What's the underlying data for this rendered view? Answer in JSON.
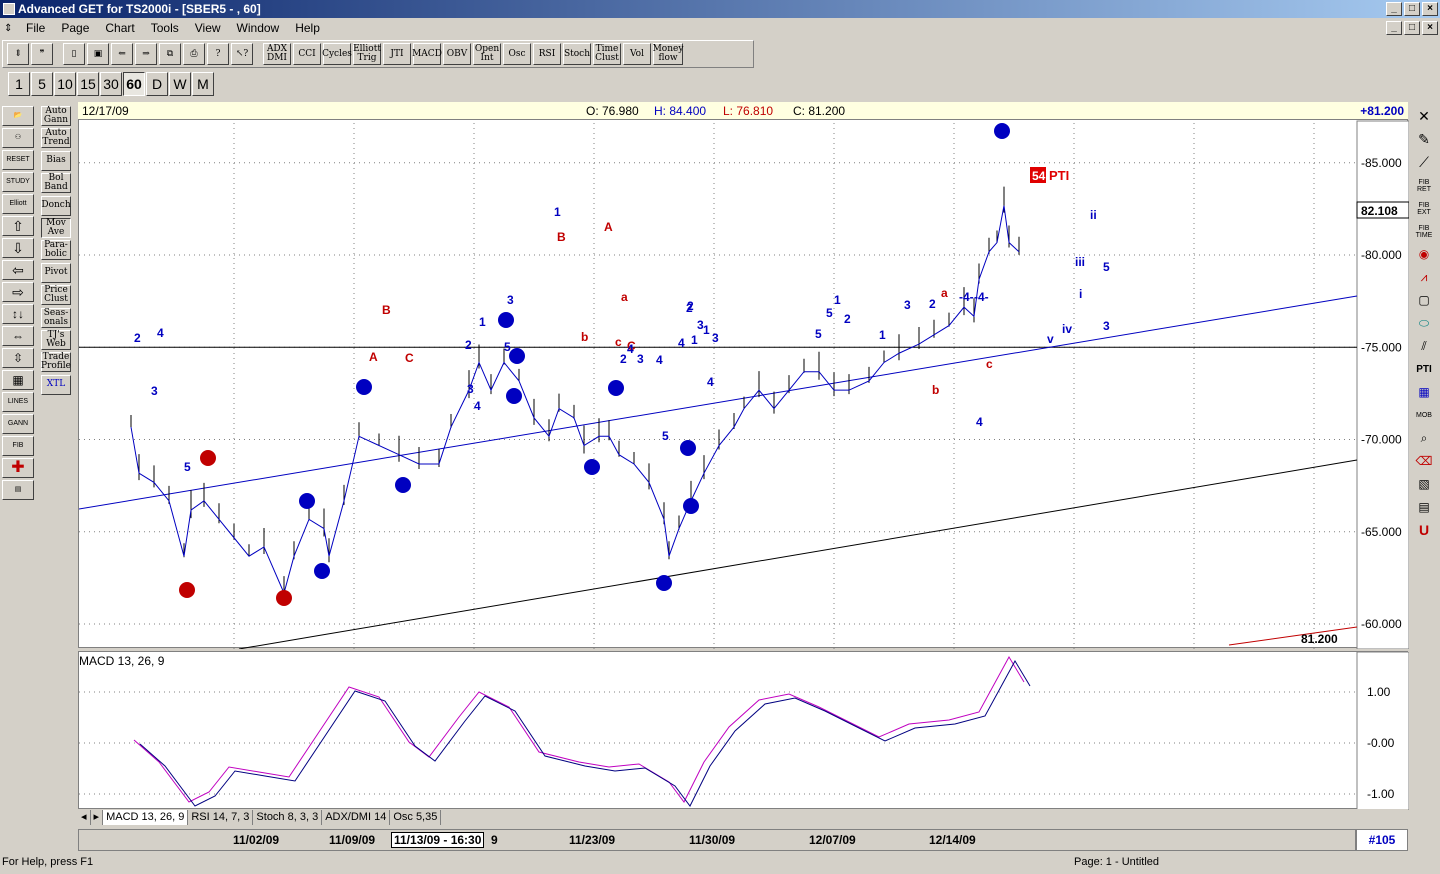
{
  "window": {
    "title": "Advanced GET for TS2000i - [SBER5 - , 60]"
  },
  "menu": [
    "File",
    "Page",
    "Chart",
    "Tools",
    "View",
    "Window",
    "Help"
  ],
  "toolbar": [
    "ADX DMI",
    "CCI",
    "Cycles",
    "Elliott Trig",
    "JTI",
    "MACD",
    "OBV",
    "Open Int",
    "Osc",
    "RSI",
    "Stoch",
    "Time Clust",
    "Vol",
    "Money flow"
  ],
  "timeframes": [
    "1",
    "5",
    "10",
    "15",
    "30",
    "60",
    "D",
    "W",
    "M"
  ],
  "selected_timeframe": "60",
  "left_tools": [
    "Auto Gann",
    "Auto Trend",
    "Bias",
    "Bol Band",
    "Donch",
    "Mov Ave",
    "Para-bolic",
    "Pivot",
    "Price Clust",
    "Seas-onals",
    "TJ's Web",
    "Trade Profile",
    "XTL"
  ],
  "left_icons": [
    "RESET",
    "STUDY",
    "Elliott",
    "LINES",
    "GANN",
    "FIB"
  ],
  "right_icons": [
    "FIB RET",
    "FIB EXT",
    "FIB TIME",
    "PTI",
    "MOB"
  ],
  "info": {
    "date": "12/17/09",
    "open": "O: 76.980",
    "high": "H: 84.400",
    "low": "L: 76.810",
    "close": "C: 81.200",
    "change": "+81.200"
  },
  "price_axis": {
    "labels": [
      "-85.000",
      "-80.000",
      "-75.000",
      "-70.000",
      "-65.000",
      "-60.000"
    ],
    "current": "82.108",
    "last": "81.200"
  },
  "pti": {
    "value": "54",
    "label": "PTI"
  },
  "macd": {
    "title": "MACD 13, 26, 9",
    "labels": [
      "1.00",
      "-0.00",
      "-1.00"
    ]
  },
  "tabs": [
    "MACD 13, 26, 9",
    "RSI 14, 7, 3",
    "Stoch 8, 3, 3",
    "ADX/DMI 14",
    "Osc 5,35"
  ],
  "dates": [
    "11/02/09",
    "11/09/09",
    "11/13/09 - 16:30",
    "9",
    "11/23/09",
    "11/30/09",
    "12/07/09",
    "12/14/09"
  ],
  "bar_count": "#105",
  "status": {
    "help": "For Help, press F1",
    "page": "Page: 1 - Untitled"
  },
  "waves": [
    {
      "t": "2",
      "c": "#0000c0"
    },
    {
      "t": "4",
      "c": "#0000c0"
    },
    {
      "t": "3",
      "c": "#0000c0"
    },
    {
      "t": "5",
      "c": "#0000c0"
    },
    {
      "t": "B",
      "c": "#c00000"
    },
    {
      "t": "A",
      "c": "#c00000"
    },
    {
      "t": "C",
      "c": "#c00000"
    },
    {
      "t": "1",
      "c": "#0000c0"
    },
    {
      "t": "2",
      "c": "#0000c0"
    },
    {
      "t": "3",
      "c": "#0000c0"
    },
    {
      "t": "4",
      "c": "#0000c0"
    },
    {
      "t": "5",
      "c": "#0000c0"
    },
    {
      "t": "3",
      "c": "#0000c0"
    },
    {
      "t": "B",
      "c": "#c00000"
    },
    {
      "t": "A",
      "c": "#c00000"
    },
    {
      "t": "1",
      "c": "#0000c0"
    },
    {
      "t": "b",
      "c": "#c00000"
    },
    {
      "t": "C",
      "c": "#c00000"
    },
    {
      "t": "a",
      "c": "#c00000"
    },
    {
      "t": "c",
      "c": "#c00000"
    },
    {
      "t": "2",
      "c": "#0000c0"
    },
    {
      "t": "4",
      "c": "#0000c0"
    },
    {
      "t": "3",
      "c": "#0000c0"
    },
    {
      "t": "4",
      "c": "#0000c0"
    },
    {
      "t": "5",
      "c": "#0000c0"
    },
    {
      "t": "5",
      "c": "#0000c0"
    },
    {
      "t": "2",
      "c": "#0000c0"
    },
    {
      "t": "1",
      "c": "#0000c0"
    },
    {
      "t": "2",
      "c": "#0000c0"
    },
    {
      "t": "1",
      "c": "#0000c0"
    },
    {
      "t": "3",
      "c": "#0000c0"
    },
    {
      "t": "4",
      "c": "#0000c0"
    },
    {
      "t": "4",
      "c": "#0000c0"
    },
    {
      "t": "3",
      "c": "#0000c0"
    },
    {
      "t": "5",
      "c": "#0000c0"
    },
    {
      "t": "5",
      "c": "#0000c0"
    },
    {
      "t": "1",
      "c": "#0000c0"
    },
    {
      "t": "2",
      "c": "#0000c0"
    },
    {
      "t": "1",
      "c": "#0000c0"
    },
    {
      "t": "2",
      "c": "#0000c0"
    },
    {
      "t": "3",
      "c": "#0000c0"
    },
    {
      "t": "b",
      "c": "#c00000"
    },
    {
      "t": "a",
      "c": "#c00000"
    },
    {
      "t": "c",
      "c": "#c00000"
    },
    {
      "t": "4",
      "c": "#0000c0"
    },
    {
      "t": "i",
      "c": "#0000c0"
    },
    {
      "t": "ii",
      "c": "#0000c0"
    },
    {
      "t": "iii",
      "c": "#0000c0"
    },
    {
      "t": "iv",
      "c": "#0000c0"
    },
    {
      "t": "v",
      "c": "#0000c0"
    },
    {
      "t": "5",
      "c": "#0000c0"
    },
    {
      "t": "3",
      "c": "#0000c0"
    },
    {
      "t": "-4-",
      "c": "#0000c0"
    },
    {
      "t": "-4-",
      "c": "#0000c0"
    }
  ]
}
